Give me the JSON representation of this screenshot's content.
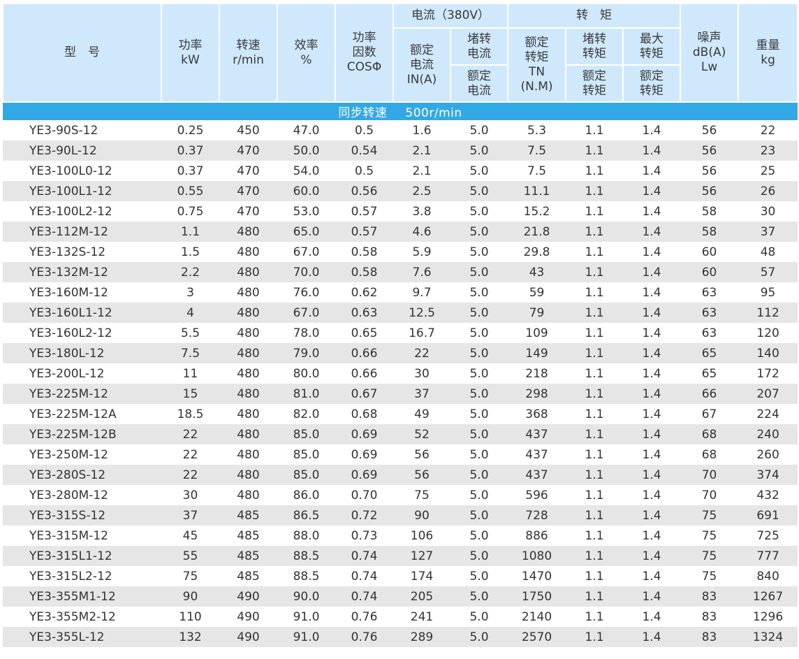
{
  "header": {
    "model": "型　号",
    "power": "功率\nkW",
    "speed": "转速\nr/min",
    "efficiency": "效率\n%",
    "power_factor": "功率\n因数\nCOSΦ",
    "current_group": "电流（380V）",
    "rated_current": "额定\n电流\nIN(A)",
    "locked_current_top": "堵转\n电流",
    "locked_current_bottom": "额定\n电流",
    "torque_group": "转　矩",
    "rated_torque": "额定\n转矩\nTN\n(N.M)",
    "locked_torque_top": "堵转\n转矩",
    "locked_torque_bottom": "额定\n转矩",
    "max_torque_top": "最大\n转矩",
    "max_torque_bottom": "额定\n转矩",
    "noise": "噪声\ndB(A)\nLw",
    "weight": "重量\nkg"
  },
  "section": {
    "label": "同步转速",
    "value": "500r/min"
  },
  "rows": [
    [
      "YE3-90S-12",
      "0.25",
      "450",
      "47.0",
      "0.5",
      "1.6",
      "5.0",
      "5.3",
      "1.1",
      "1.4",
      "56",
      "22"
    ],
    [
      "YE3-90L-12",
      "0.37",
      "470",
      "50.0",
      "0.54",
      "2.1",
      "5.0",
      "7.5",
      "1.1",
      "1.4",
      "56",
      "23"
    ],
    [
      "YE3-100L0-12",
      "0.37",
      "470",
      "54.0",
      "0.5",
      "2.1",
      "5.0",
      "7.5",
      "1.1",
      "1.4",
      "56",
      "25"
    ],
    [
      "YE3-100L1-12",
      "0.55",
      "470",
      "60.0",
      "0.56",
      "2.5",
      "5.0",
      "11.1",
      "1.1",
      "1.4",
      "56",
      "26"
    ],
    [
      "YE3-100L2-12",
      "0.75",
      "470",
      "53.0",
      "0.57",
      "3.8",
      "5.0",
      "15.2",
      "1.1",
      "1.4",
      "58",
      "30"
    ],
    [
      "YE3-112M-12",
      "1.1",
      "480",
      "65.0",
      "0.57",
      "4.6",
      "5.0",
      "21.8",
      "1.1",
      "1.4",
      "58",
      "37"
    ],
    [
      "YE3-132S-12",
      "1.5",
      "480",
      "67.0",
      "0.58",
      "5.9",
      "5.0",
      "29.8",
      "1.1",
      "1.4",
      "60",
      "48"
    ],
    [
      "YE3-132M-12",
      "2.2",
      "480",
      "70.0",
      "0.58",
      "7.6",
      "5.0",
      "43",
      "1.1",
      "1.4",
      "60",
      "57"
    ],
    [
      "YE3-160M-12",
      "3",
      "480",
      "76.0",
      "0.62",
      "9.7",
      "5.0",
      "59",
      "1.1",
      "1.4",
      "63",
      "95"
    ],
    [
      "YE3-160L1-12",
      "4",
      "480",
      "67.0",
      "0.63",
      "12.5",
      "5.0",
      "79",
      "1.1",
      "1.4",
      "63",
      "112"
    ],
    [
      "YE3-160L2-12",
      "5.5",
      "480",
      "78.0",
      "0.65",
      "16.7",
      "5.0",
      "109",
      "1.1",
      "1.4",
      "63",
      "120"
    ],
    [
      "YE3-180L-12",
      "7.5",
      "480",
      "79.0",
      "0.66",
      "22",
      "5.0",
      "149",
      "1.1",
      "1.4",
      "65",
      "140"
    ],
    [
      "YE3-200L-12",
      "11",
      "480",
      "80.0",
      "0.66",
      "30",
      "5.0",
      "218",
      "1.1",
      "1.4",
      "65",
      "172"
    ],
    [
      "YE3-225M-12",
      "15",
      "480",
      "81.0",
      "0.67",
      "37",
      "5.0",
      "298",
      "1.1",
      "1.4",
      "66",
      "207"
    ],
    [
      "YE3-225M-12A",
      "18.5",
      "480",
      "82.0",
      "0.68",
      "49",
      "5.0",
      "368",
      "1.1",
      "1.4",
      "67",
      "224"
    ],
    [
      "YE3-225M-12B",
      "22",
      "480",
      "85.0",
      "0.69",
      "52",
      "5.0",
      "437",
      "1.1",
      "1.4",
      "68",
      "240"
    ],
    [
      "YE3-250M-12",
      "22",
      "480",
      "85.0",
      "0.69",
      "56",
      "5.0",
      "437",
      "1.1",
      "1.4",
      "68",
      "260"
    ],
    [
      "YE3-280S-12",
      "22",
      "480",
      "85.0",
      "0.69",
      "56",
      "5.0",
      "437",
      "1.1",
      "1.4",
      "70",
      "374"
    ],
    [
      "YE3-280M-12",
      "30",
      "480",
      "86.0",
      "0.70",
      "75",
      "5.0",
      "596",
      "1.1",
      "1.4",
      "70",
      "432"
    ],
    [
      "YE3-315S-12",
      "37",
      "485",
      "86.5",
      "0.72",
      "90",
      "5.0",
      "728",
      "1.1",
      "1.4",
      "75",
      "691"
    ],
    [
      "YE3-315M-12",
      "45",
      "485",
      "88.0",
      "0.73",
      "106",
      "5.0",
      "886",
      "1.1",
      "1.4",
      "75",
      "725"
    ],
    [
      "YE3-315L1-12",
      "55",
      "485",
      "88.5",
      "0.74",
      "127",
      "5.0",
      "1080",
      "1.1",
      "1.4",
      "75",
      "777"
    ],
    [
      "YE3-315L2-12",
      "75",
      "485",
      "88.5",
      "0.74",
      "174",
      "5.0",
      "1470",
      "1.1",
      "1.4",
      "75",
      "840"
    ],
    [
      "YE3-355M1-12",
      "90",
      "490",
      "90.0",
      "0.74",
      "205",
      "5.0",
      "1750",
      "1.1",
      "1.4",
      "83",
      "1267"
    ],
    [
      "YE3-355M2-12",
      "110",
      "490",
      "91.0",
      "0.76",
      "241",
      "5.0",
      "2140",
      "1.1",
      "1.4",
      "83",
      "1296"
    ],
    [
      "YE3-355L-12",
      "132",
      "490",
      "91.0",
      "0.76",
      "289",
      "5.0",
      "2570",
      "1.1",
      "1.4",
      "83",
      "1324"
    ]
  ],
  "colors": {
    "header_bg": "#cfe8fb",
    "section_bg": "#33a8e6",
    "alt_row_bg": "#e6e6e6"
  }
}
